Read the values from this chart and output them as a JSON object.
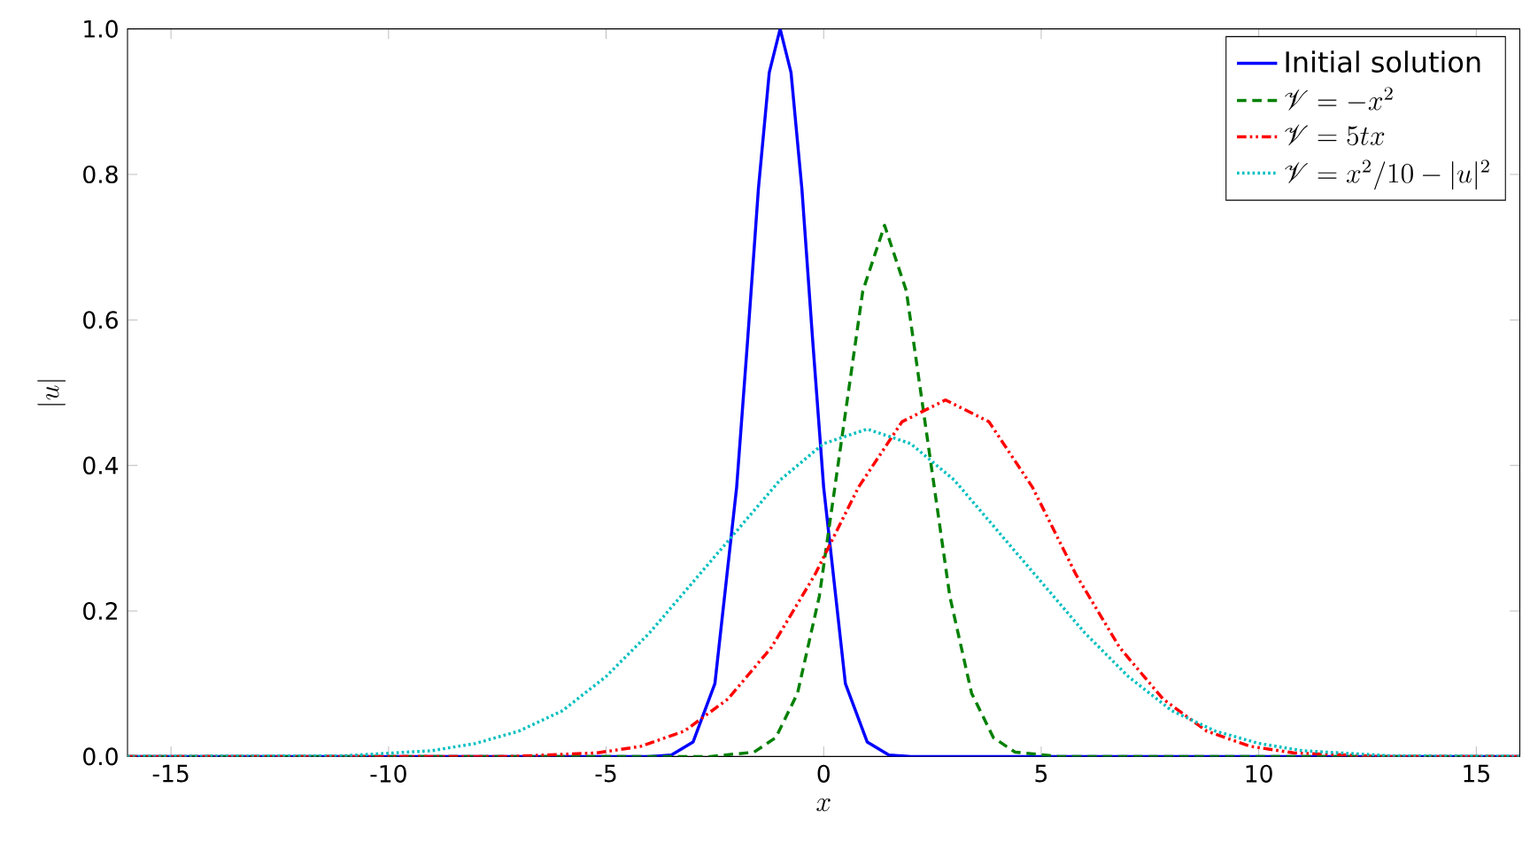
{
  "chart_data": {
    "type": "line",
    "xlabel": "x",
    "ylabel": "|u|",
    "xlim": [
      -16,
      16
    ],
    "ylim": [
      0,
      1.0
    ],
    "xticks": [
      -15,
      -10,
      -5,
      0,
      5,
      10,
      15
    ],
    "yticks": [
      {
        "value": 0,
        "label": "0.0"
      },
      0.2,
      0.4,
      0.6,
      0.8,
      {
        "value": 1,
        "label": "1.0"
      }
    ],
    "legend": "top right",
    "grid": false,
    "marker": "none",
    "series": [
      {
        "name": "Initial solution",
        "color": "#0000ff",
        "line_style": "solid",
        "x": [
          -16,
          -4,
          -3.5,
          -3,
          -2.5,
          -2,
          -1.75,
          -1.5,
          -1.25,
          -1,
          -0.75,
          -0.5,
          -0.25,
          0,
          0.5,
          1,
          1.5,
          2,
          16
        ],
        "values": [
          0,
          0,
          0.002,
          0.02,
          0.1,
          0.37,
          0.57,
          0.78,
          0.94,
          1.0,
          0.94,
          0.78,
          0.57,
          0.37,
          0.1,
          0.02,
          0.002,
          0,
          0
        ]
      },
      {
        "name": "\\mathscr{V} = -x^2",
        "color": "#008000",
        "line_style": "dashed",
        "x": [
          -16,
          -2.6,
          -1.6,
          -1.1,
          -0.6,
          -0.1,
          0.4,
          0.9,
          1.4,
          1.9,
          2.4,
          2.9,
          3.4,
          3.9,
          4.4,
          5.4,
          16
        ],
        "values": [
          0,
          0,
          0.006,
          0.026,
          0.087,
          0.22,
          0.43,
          0.64,
          0.73,
          0.64,
          0.43,
          0.22,
          0.087,
          0.026,
          0.006,
          0,
          0
        ]
      },
      {
        "name": "\\mathscr{V} = 5tx",
        "color": "#ff0000",
        "line_style": "dashdotdot",
        "x": [
          -16,
          -7.2,
          -5.2,
          -4.2,
          -3.2,
          -2.2,
          -1.2,
          -0.2,
          0.8,
          1.8,
          2.8,
          3.8,
          4.8,
          5.8,
          6.8,
          7.8,
          8.8,
          9.8,
          10.8,
          12.8,
          16
        ],
        "values": [
          0,
          0,
          0.005,
          0.014,
          0.035,
          0.079,
          0.15,
          0.25,
          0.37,
          0.46,
          0.49,
          0.46,
          0.37,
          0.25,
          0.15,
          0.079,
          0.035,
          0.014,
          0.005,
          0,
          0
        ]
      },
      {
        "name": "\\mathscr{V} = x^2/10 - |u|^2",
        "color": "#00bfbf",
        "line_style": "dotted",
        "x": [
          -16,
          -11,
          -9,
          -8,
          -7,
          -6,
          -5,
          -4,
          -3,
          -2,
          -1,
          0,
          1,
          2,
          3,
          4,
          5,
          6,
          7,
          8,
          9,
          10,
          11,
          13,
          16
        ],
        "values": [
          0,
          0.001,
          0.008,
          0.018,
          0.035,
          0.063,
          0.11,
          0.17,
          0.24,
          0.31,
          0.38,
          0.43,
          0.45,
          0.43,
          0.38,
          0.31,
          0.24,
          0.17,
          0.11,
          0.063,
          0.035,
          0.018,
          0.008,
          0.001,
          0
        ]
      }
    ]
  }
}
